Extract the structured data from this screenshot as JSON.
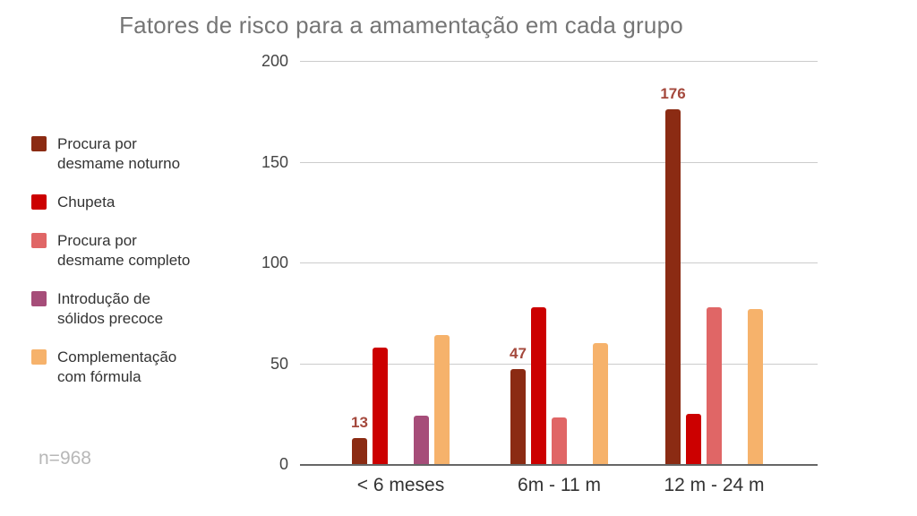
{
  "chart_data": {
    "type": "bar",
    "title": "Fatores de risco para a amamentação em cada grupo",
    "categories": [
      "< 6 meses",
      "6m - 11 m",
      "12 m - 24 m"
    ],
    "series": [
      {
        "name": "Procura por desmame noturno",
        "label_lines": [
          "Procura por",
          "desmame noturno"
        ],
        "color": "#8b2b13",
        "values": [
          13,
          47,
          176
        ]
      },
      {
        "name": "Chupeta",
        "label_lines": [
          "Chupeta"
        ],
        "color": "#cc0000",
        "values": [
          58,
          78,
          25
        ]
      },
      {
        "name": "Procura por desmame completo",
        "label_lines": [
          "Procura por",
          "desmame completo"
        ],
        "color": "#e06666",
        "values": [
          0,
          23,
          78
        ]
      },
      {
        "name": "Introdução de sólidos precoce",
        "label_lines": [
          "Introdução de",
          "sólidos precoce"
        ],
        "color": "#a64d79",
        "values": [
          24,
          0,
          0
        ]
      },
      {
        "name": "Complementação com fórmula",
        "label_lines": [
          "Complementação",
          "com fórmula"
        ],
        "color": "#f6b26b",
        "values": [
          64,
          60,
          77
        ]
      }
    ],
    "annotated_series_index": 0,
    "annotation_labels": [
      "13",
      "47",
      "176"
    ],
    "y_axis": {
      "range": [
        0,
        200
      ],
      "ticks": [
        0,
        50,
        100,
        150,
        200
      ]
    },
    "grid": true,
    "legend_position": "left",
    "sample_note": "n=968"
  },
  "style": {
    "title_color": "#757575",
    "annotation_color": "#a4483c",
    "note_color": "#b7b7b7",
    "gridline_color": "#cccccc",
    "axis_line_color": "#666666",
    "tick_label_color": "#444444",
    "category_label_color": "#333333",
    "legend_text_color": "#333333",
    "background": "#ffffff"
  }
}
